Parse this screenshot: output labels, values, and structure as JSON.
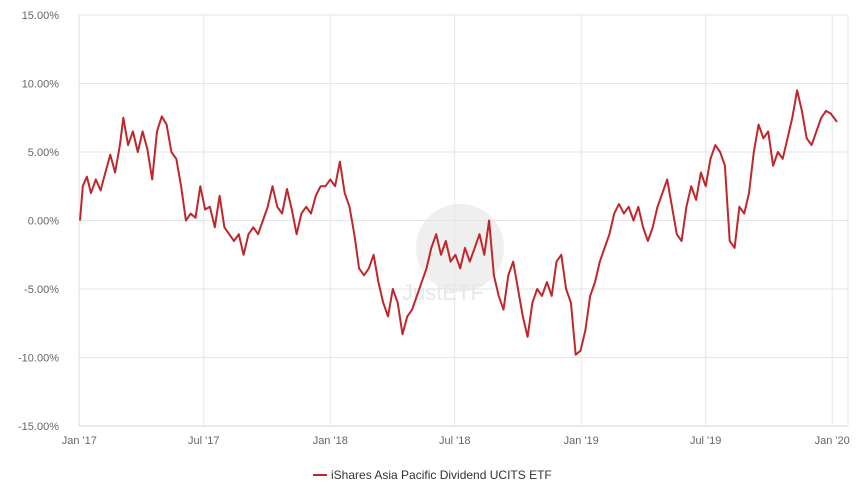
{
  "chart_data": {
    "type": "line",
    "title": "",
    "xlabel": "",
    "ylabel": "",
    "ylim": [
      -15,
      15
    ],
    "y_ticks": [
      -15,
      -10,
      -5,
      0,
      5,
      10,
      15
    ],
    "y_tick_labels": [
      "-15.00%",
      "-10.00%",
      "-5.00%",
      "0.00%",
      "5.00%",
      "10.00%",
      "15.00%"
    ],
    "x_ticks": [
      "2017-01",
      "2017-07",
      "2018-01",
      "2018-07",
      "2019-01",
      "2019-07",
      "2020-01"
    ],
    "x_tick_labels": [
      "Jan '17",
      "Jul '17",
      "Jan '18",
      "Jul '18",
      "Jan '19",
      "Jul '19",
      "Jan '20"
    ],
    "x_range": [
      "2017-01-02",
      "2020-01-08"
    ],
    "grid": true,
    "legend_position": "bottom-center",
    "series": [
      {
        "name": "iShares Asia Pacific Dividend UCITS ETF",
        "color": "#c0272d",
        "points": [
          [
            "2017-01-02",
            0.0
          ],
          [
            "2017-01-06",
            2.5
          ],
          [
            "2017-01-12",
            3.2
          ],
          [
            "2017-01-18",
            2.0
          ],
          [
            "2017-01-25",
            3.0
          ],
          [
            "2017-02-01",
            2.2
          ],
          [
            "2017-02-08",
            3.5
          ],
          [
            "2017-02-15",
            4.8
          ],
          [
            "2017-02-22",
            3.5
          ],
          [
            "2017-03-01",
            5.5
          ],
          [
            "2017-03-06",
            7.5
          ],
          [
            "2017-03-13",
            5.5
          ],
          [
            "2017-03-20",
            6.5
          ],
          [
            "2017-03-27",
            5.0
          ],
          [
            "2017-04-03",
            6.5
          ],
          [
            "2017-04-10",
            5.2
          ],
          [
            "2017-04-17",
            3.0
          ],
          [
            "2017-04-24",
            6.5
          ],
          [
            "2017-05-01",
            7.6
          ],
          [
            "2017-05-08",
            7.0
          ],
          [
            "2017-05-15",
            5.0
          ],
          [
            "2017-05-22",
            4.5
          ],
          [
            "2017-05-29",
            2.5
          ],
          [
            "2017-06-05",
            0.0
          ],
          [
            "2017-06-12",
            0.5
          ],
          [
            "2017-06-19",
            0.2
          ],
          [
            "2017-06-26",
            2.5
          ],
          [
            "2017-07-03",
            0.8
          ],
          [
            "2017-07-10",
            1.0
          ],
          [
            "2017-07-17",
            -0.5
          ],
          [
            "2017-07-24",
            1.8
          ],
          [
            "2017-07-31",
            -0.5
          ],
          [
            "2017-08-07",
            -1.0
          ],
          [
            "2017-08-14",
            -1.5
          ],
          [
            "2017-08-21",
            -1.0
          ],
          [
            "2017-08-28",
            -2.5
          ],
          [
            "2017-09-04",
            -1.0
          ],
          [
            "2017-09-11",
            -0.5
          ],
          [
            "2017-09-18",
            -1.0
          ],
          [
            "2017-09-25",
            0.0
          ],
          [
            "2017-10-02",
            1.0
          ],
          [
            "2017-10-09",
            2.5
          ],
          [
            "2017-10-16",
            1.0
          ],
          [
            "2017-10-23",
            0.5
          ],
          [
            "2017-10-30",
            2.3
          ],
          [
            "2017-11-06",
            0.8
          ],
          [
            "2017-11-13",
            -1.0
          ],
          [
            "2017-11-20",
            0.5
          ],
          [
            "2017-11-27",
            1.0
          ],
          [
            "2017-12-04",
            0.5
          ],
          [
            "2017-12-11",
            1.8
          ],
          [
            "2017-12-18",
            2.5
          ],
          [
            "2017-12-25",
            2.5
          ],
          [
            "2018-01-01",
            3.0
          ],
          [
            "2018-01-08",
            2.5
          ],
          [
            "2018-01-15",
            4.3
          ],
          [
            "2018-01-22",
            2.0
          ],
          [
            "2018-01-29",
            1.0
          ],
          [
            "2018-02-05",
            -1.0
          ],
          [
            "2018-02-12",
            -3.5
          ],
          [
            "2018-02-19",
            -4.0
          ],
          [
            "2018-02-26",
            -3.5
          ],
          [
            "2018-03-05",
            -2.5
          ],
          [
            "2018-03-12",
            -4.5
          ],
          [
            "2018-03-19",
            -6.0
          ],
          [
            "2018-03-26",
            -7.0
          ],
          [
            "2018-04-02",
            -5.0
          ],
          [
            "2018-04-09",
            -6.0
          ],
          [
            "2018-04-16",
            -8.3
          ],
          [
            "2018-04-23",
            -7.0
          ],
          [
            "2018-04-30",
            -6.5
          ],
          [
            "2018-05-07",
            -5.5
          ],
          [
            "2018-05-14",
            -4.5
          ],
          [
            "2018-05-21",
            -3.5
          ],
          [
            "2018-05-28",
            -2.0
          ],
          [
            "2018-06-04",
            -1.0
          ],
          [
            "2018-06-11",
            -2.5
          ],
          [
            "2018-06-18",
            -1.5
          ],
          [
            "2018-06-25",
            -3.0
          ],
          [
            "2018-07-02",
            -2.5
          ],
          [
            "2018-07-09",
            -3.5
          ],
          [
            "2018-07-16",
            -2.0
          ],
          [
            "2018-07-23",
            -3.0
          ],
          [
            "2018-07-30",
            -2.0
          ],
          [
            "2018-08-06",
            -1.0
          ],
          [
            "2018-08-13",
            -2.5
          ],
          [
            "2018-08-20",
            0.0
          ],
          [
            "2018-08-27",
            -4.0
          ],
          [
            "2018-09-03",
            -5.5
          ],
          [
            "2018-09-10",
            -6.5
          ],
          [
            "2018-09-17",
            -4.0
          ],
          [
            "2018-09-24",
            -3.0
          ],
          [
            "2018-10-01",
            -5.0
          ],
          [
            "2018-10-08",
            -7.0
          ],
          [
            "2018-10-15",
            -8.5
          ],
          [
            "2018-10-22",
            -6.0
          ],
          [
            "2018-10-29",
            -5.0
          ],
          [
            "2018-11-05",
            -5.5
          ],
          [
            "2018-11-12",
            -4.5
          ],
          [
            "2018-11-19",
            -5.5
          ],
          [
            "2018-11-26",
            -3.0
          ],
          [
            "2018-12-03",
            -2.5
          ],
          [
            "2018-12-10",
            -5.0
          ],
          [
            "2018-12-17",
            -6.0
          ],
          [
            "2018-12-24",
            -9.8
          ],
          [
            "2018-12-31",
            -9.5
          ],
          [
            "2019-01-07",
            -8.0
          ],
          [
            "2019-01-14",
            -5.5
          ],
          [
            "2019-01-21",
            -4.5
          ],
          [
            "2019-01-28",
            -3.0
          ],
          [
            "2019-02-04",
            -2.0
          ],
          [
            "2019-02-11",
            -1.0
          ],
          [
            "2019-02-18",
            0.5
          ],
          [
            "2019-02-25",
            1.2
          ],
          [
            "2019-03-04",
            0.5
          ],
          [
            "2019-03-11",
            1.0
          ],
          [
            "2019-03-18",
            0.0
          ],
          [
            "2019-03-25",
            1.0
          ],
          [
            "2019-04-01",
            -0.5
          ],
          [
            "2019-04-08",
            -1.5
          ],
          [
            "2019-04-15",
            -0.5
          ],
          [
            "2019-04-22",
            1.0
          ],
          [
            "2019-04-29",
            2.0
          ],
          [
            "2019-05-06",
            3.0
          ],
          [
            "2019-05-13",
            1.0
          ],
          [
            "2019-05-20",
            -1.0
          ],
          [
            "2019-05-27",
            -1.5
          ],
          [
            "2019-06-03",
            1.0
          ],
          [
            "2019-06-10",
            2.5
          ],
          [
            "2019-06-17",
            1.5
          ],
          [
            "2019-06-24",
            3.5
          ],
          [
            "2019-07-01",
            2.5
          ],
          [
            "2019-07-08",
            4.5
          ],
          [
            "2019-07-15",
            5.5
          ],
          [
            "2019-07-22",
            5.0
          ],
          [
            "2019-07-29",
            4.0
          ],
          [
            "2019-08-05",
            -1.5
          ],
          [
            "2019-08-12",
            -2.0
          ],
          [
            "2019-08-19",
            1.0
          ],
          [
            "2019-08-26",
            0.5
          ],
          [
            "2019-09-02",
            2.0
          ],
          [
            "2019-09-09",
            5.0
          ],
          [
            "2019-09-16",
            7.0
          ],
          [
            "2019-09-23",
            6.0
          ],
          [
            "2019-09-30",
            6.5
          ],
          [
            "2019-10-07",
            4.0
          ],
          [
            "2019-10-14",
            5.0
          ],
          [
            "2019-10-21",
            4.5
          ],
          [
            "2019-10-28",
            6.0
          ],
          [
            "2019-11-04",
            7.5
          ],
          [
            "2019-11-11",
            9.5
          ],
          [
            "2019-11-18",
            8.0
          ],
          [
            "2019-11-25",
            6.0
          ],
          [
            "2019-12-02",
            5.5
          ],
          [
            "2019-12-09",
            6.5
          ],
          [
            "2019-12-16",
            7.5
          ],
          [
            "2019-12-23",
            8.0
          ],
          [
            "2019-12-30",
            7.8
          ],
          [
            "2020-01-08",
            7.2
          ]
        ]
      }
    ]
  },
  "watermark": {
    "text": "JustETF"
  },
  "colors": {
    "line": "#c0272d",
    "grid": "#e6e6e6",
    "axis": "#ccd6eb",
    "tick_text": "#666666",
    "legend_text": "#333333"
  }
}
